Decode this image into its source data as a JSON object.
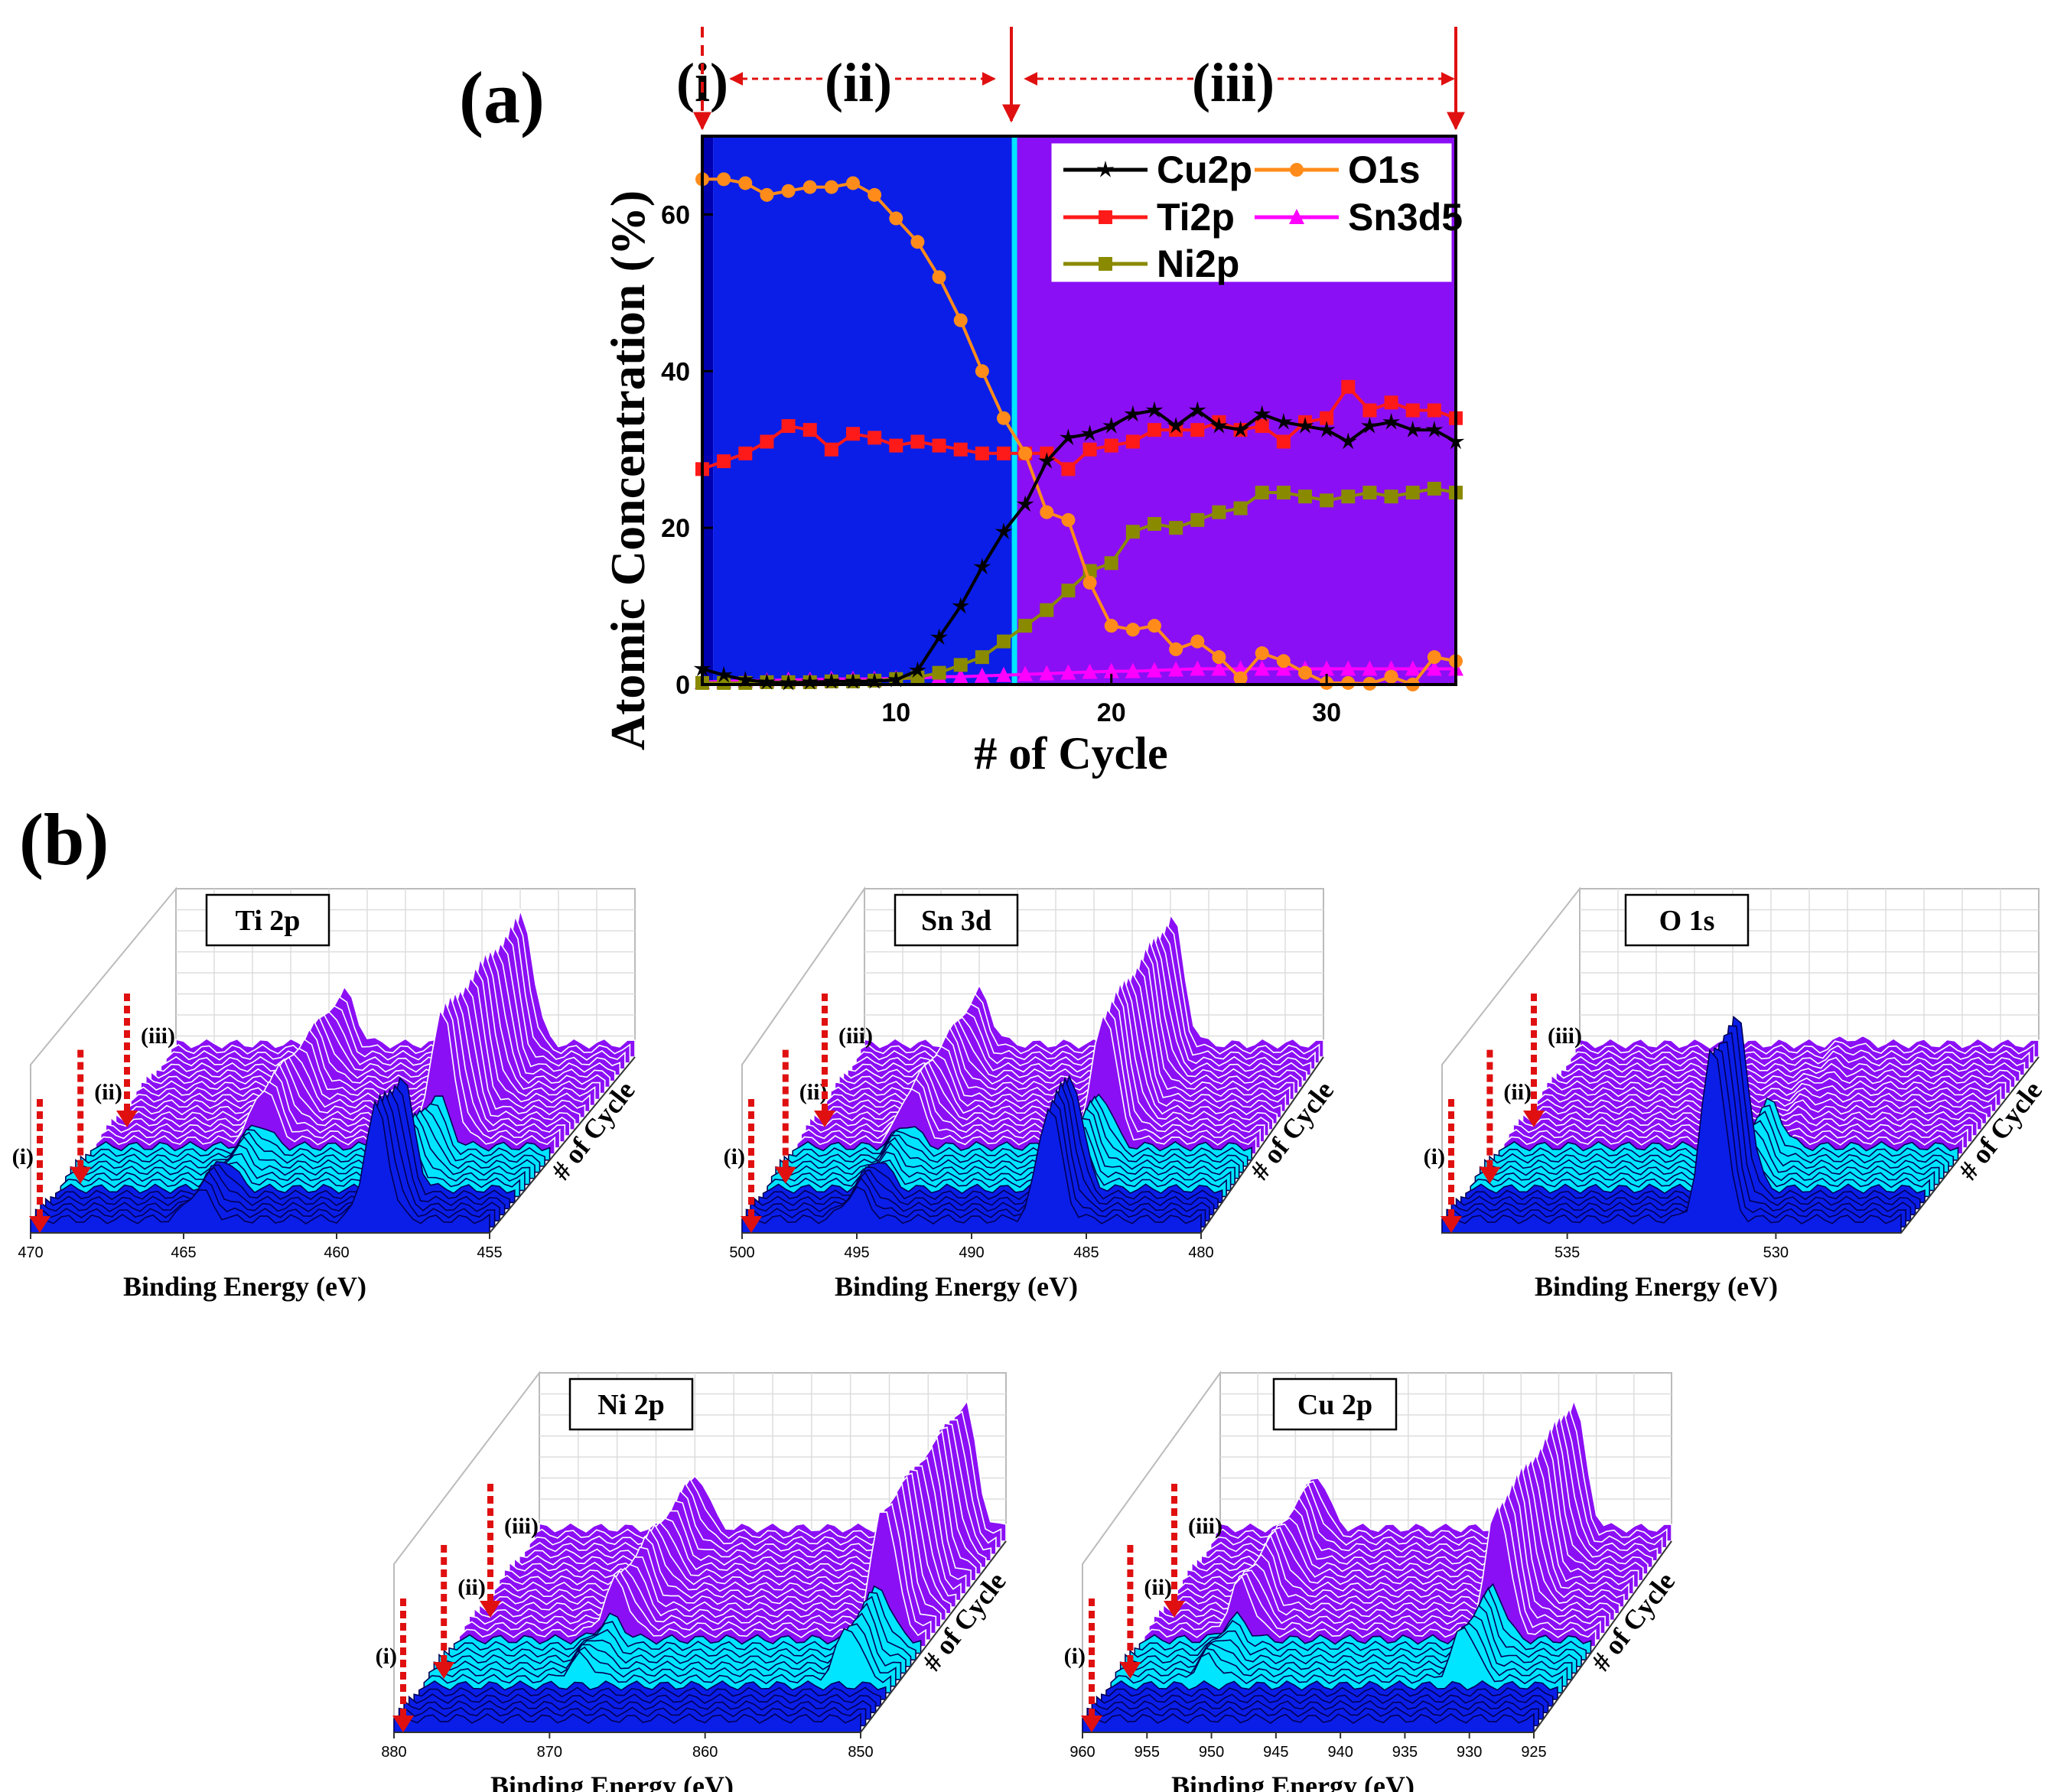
{
  "panel_a": {
    "label": "(a)",
    "regions": [
      {
        "label": "(i)",
        "x_start": 1,
        "x_end": 1.5
      },
      {
        "label": "(ii)",
        "x_start": 1.5,
        "x_end": 15.5
      },
      {
        "label": "(iii)",
        "x_start": 15.5,
        "x_end": 36
      }
    ],
    "region_colors": {
      "i": "#0000b0",
      "ii": "#0a1ee8",
      "iii": "#8b0ff5",
      "divider": "#00e5ff"
    }
  },
  "panel_b": {
    "label": "(b)",
    "stage_labels": [
      "(i)",
      "(ii)",
      "(iii)"
    ],
    "depth_axis_label": "# of Cycle",
    "xlabel": "Binding Energy (eV)",
    "subplots": [
      {
        "title": "Ti 2p",
        "ticks": [
          "470",
          "465",
          "460",
          "455"
        ],
        "peaks_eV": [
          464.5,
          458.7
        ]
      },
      {
        "title": "Sn 3d",
        "ticks": [
          "500",
          "495",
          "490",
          "485",
          "480"
        ],
        "peaks_eV": [
          495.0,
          486.6
        ]
      },
      {
        "title": "O 1s",
        "ticks": [
          "535",
          "530"
        ],
        "peaks_eV": [
          531.5
        ]
      },
      {
        "title": "Ni 2p",
        "ticks": [
          "880",
          "870",
          "860",
          "850"
        ],
        "peaks_eV": [
          869.9,
          852.7
        ]
      },
      {
        "title": "Cu 2p",
        "ticks": [
          "960",
          "955",
          "950",
          "945",
          "940",
          "935",
          "930",
          "925"
        ],
        "peaks_eV": [
          952.5,
          932.6
        ]
      }
    ],
    "colors": {
      "stage_i": "#0a1ee8",
      "stage_ii": "#00e5ff",
      "stage_iii": "#8b0ff5"
    }
  },
  "chart_data": [
    {
      "type": "line",
      "title": "",
      "xlabel": "# of Cycle",
      "ylabel": "Atomic Concentration (%)",
      "xlim": [
        1,
        36
      ],
      "ylim": [
        0,
        70
      ],
      "xticks": [
        10,
        20,
        30
      ],
      "yticks": [
        0,
        20,
        40,
        60
      ],
      "legend": "top-right",
      "x": [
        1,
        2,
        3,
        4,
        5,
        6,
        7,
        8,
        9,
        10,
        11,
        12,
        13,
        14,
        15,
        16,
        17,
        18,
        19,
        20,
        21,
        22,
        23,
        24,
        25,
        26,
        27,
        28,
        29,
        30,
        31,
        32,
        33,
        34,
        35,
        36
      ],
      "series": [
        {
          "name": "Cu2p",
          "color": "#000000",
          "marker": "star",
          "values": [
            2.0,
            1.2,
            0.6,
            0.3,
            0.2,
            0.3,
            0.4,
            0.4,
            0.4,
            0.6,
            1.8,
            6.0,
            10.0,
            15.0,
            19.5,
            23.0,
            28.5,
            31.5,
            32.0,
            33.0,
            34.5,
            35.0,
            33.0,
            35.0,
            33.0,
            32.5,
            34.5,
            33.5,
            33.0,
            32.5,
            31.0,
            33.0,
            33.5,
            32.5,
            32.5,
            31.0
          ]
        },
        {
          "name": "O1s",
          "color": "#ff8c1a",
          "marker": "circle",
          "values": [
            64.5,
            64.5,
            64.0,
            62.5,
            63.0,
            63.5,
            63.5,
            64.0,
            62.5,
            59.5,
            56.5,
            52.0,
            46.5,
            40.0,
            34.0,
            29.5,
            22.0,
            21.0,
            13.0,
            7.5,
            7.0,
            7.5,
            4.5,
            5.5,
            3.5,
            0.8,
            4.0,
            3.0,
            1.5,
            0.2,
            0.2,
            0.1,
            1.0,
            0.0,
            3.5,
            3.0
          ]
        },
        {
          "name": "Ti2p",
          "color": "#ff1a1a",
          "marker": "square",
          "values": [
            27.5,
            28.5,
            29.5,
            31.0,
            33.0,
            32.5,
            30.0,
            32.0,
            31.5,
            30.5,
            31.0,
            30.5,
            30.0,
            29.5,
            29.5,
            29.5,
            29.5,
            27.5,
            30.0,
            30.5,
            31.0,
            32.5,
            32.5,
            32.5,
            33.5,
            32.5,
            33.0,
            31.0,
            33.5,
            34.0,
            38.0,
            35.0,
            36.0,
            35.0,
            35.0,
            34.0
          ]
        },
        {
          "name": "Sn3d5",
          "color": "#ff00ff",
          "marker": "triangle",
          "values": [
            0.3,
            0.4,
            0.5,
            0.5,
            0.6,
            0.6,
            0.7,
            0.7,
            0.7,
            0.8,
            0.8,
            1.0,
            1.0,
            1.1,
            1.2,
            1.3,
            1.4,
            1.5,
            1.6,
            1.7,
            1.7,
            1.8,
            1.9,
            2.0,
            2.0,
            2.0,
            2.0,
            2.0,
            2.0,
            2.0,
            2.0,
            2.0,
            2.0,
            2.0,
            2.0,
            2.0
          ]
        },
        {
          "name": "Ni2p",
          "color": "#8a8a00",
          "marker": "square",
          "values": [
            0.2,
            0.2,
            0.2,
            0.3,
            0.3,
            0.3,
            0.4,
            0.4,
            0.5,
            0.7,
            0.9,
            1.5,
            2.5,
            3.5,
            5.5,
            7.5,
            9.5,
            12.0,
            14.5,
            15.5,
            19.5,
            20.5,
            20.0,
            21.0,
            22.0,
            22.5,
            24.5,
            24.5,
            24.0,
            23.5,
            24.0,
            24.5,
            24.0,
            24.5,
            25.0,
            24.5
          ]
        }
      ]
    }
  ]
}
